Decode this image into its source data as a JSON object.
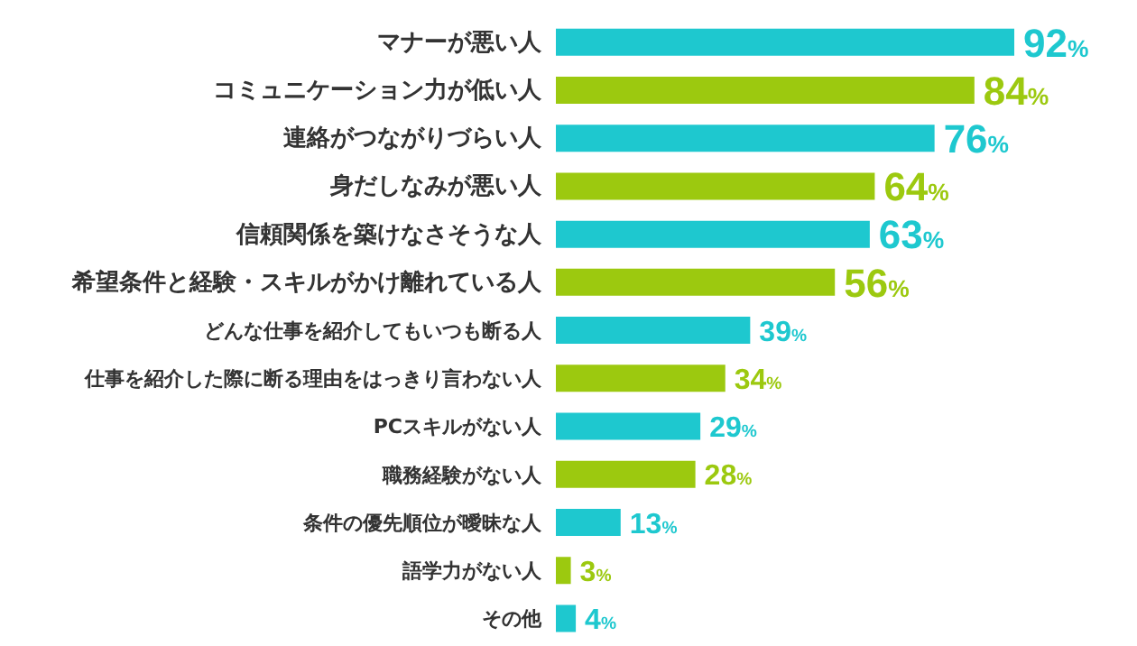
{
  "chart_data": {
    "type": "bar",
    "orientation": "horizontal",
    "categories": [
      "マナーが悪い人",
      "コミュニケーション力が低い人",
      "連絡がつながりづらい人",
      "身だしなみが悪い人",
      "信頼関係を築けなさそうな人",
      "希望条件と経験・スキルがかけ離れている人",
      "どんな仕事を紹介してもいつも断る人",
      "仕事を紹介した際に断る理由をはっきり言わない人",
      "PCスキルがない人",
      "職務経験がない人",
      "条件の優先順位が曖昧な人",
      "語学力がない人",
      "その他"
    ],
    "values": [
      92,
      84,
      76,
      64,
      63,
      56,
      39,
      34,
      29,
      28,
      13,
      3,
      4
    ],
    "value_labels": [
      "92%",
      "84%",
      "76%",
      "64%",
      "63%",
      "56%",
      "39%",
      "34%",
      "29%",
      "28%",
      "13%",
      "3%",
      "4%"
    ],
    "colors": [
      "#1ec8cf",
      "#9cc90f",
      "#1ec8cf",
      "#9cc90f",
      "#1ec8cf",
      "#9cc90f",
      "#1ec8cf",
      "#9cc90f",
      "#1ec8cf",
      "#9cc90f",
      "#1ec8cf",
      "#9cc90f",
      "#1ec8cf"
    ],
    "grid": false,
    "legend": false
  }
}
